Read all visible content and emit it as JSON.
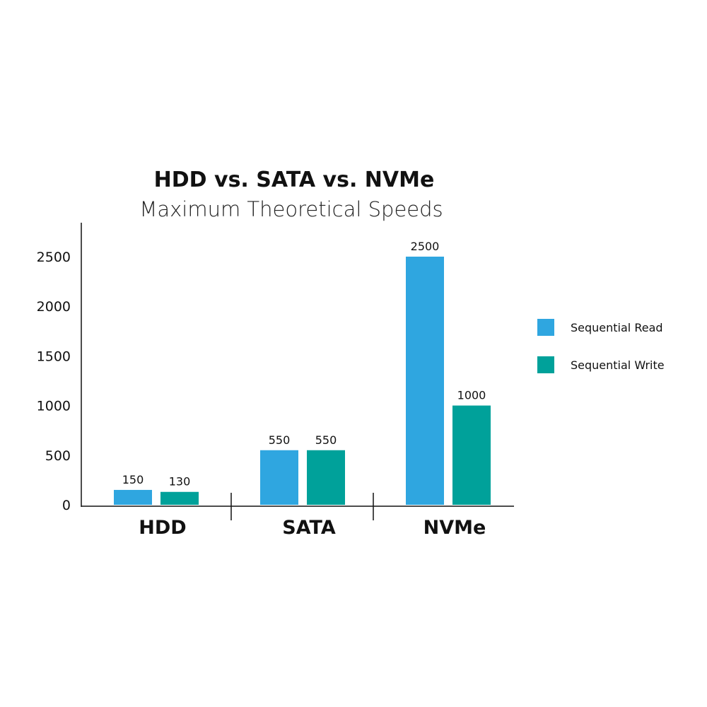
{
  "chart_data": {
    "type": "bar",
    "title": "HDD vs. SATA vs. NVMe",
    "subtitle": "Maximum Theoretical Speeds",
    "xlabel": "",
    "ylabel": "",
    "categories": [
      "HDD",
      "SATA",
      "NVMe"
    ],
    "series": [
      {
        "name": "Sequential Read",
        "values": [
          150,
          550,
          2500
        ],
        "color": "#2fa6e0"
      },
      {
        "name": "Sequential Write",
        "values": [
          130,
          550,
          1000
        ],
        "color": "#00a19a"
      }
    ],
    "yticks": [
      0,
      500,
      1000,
      1500,
      2000,
      2500
    ],
    "ylim": [
      0,
      2900
    ],
    "grid": false,
    "legend_position": "right"
  }
}
